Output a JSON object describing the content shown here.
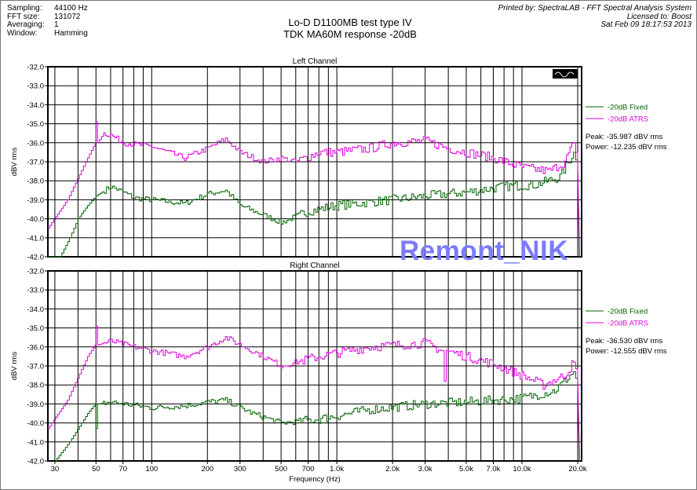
{
  "meta": {
    "items": [
      {
        "k": "Sampling:",
        "v": "44100 Hz"
      },
      {
        "k": "FFT size:",
        "v": "131072"
      },
      {
        "k": "Averaging:",
        "v": "1"
      },
      {
        "k": "Window:",
        "v": "Hamming"
      }
    ]
  },
  "title": {
    "line1": "Lo-D D1100MB test type IV",
    "line2": "TDK MA60M response -20dB"
  },
  "printed": {
    "line1": "Printed by: SpectraLAB - FFT Spectral Analysis System",
    "line2": "Licensed to: Boost",
    "line3": "Sat Feb 09 18:17:53 2013"
  },
  "watermark": "Remont_NIK",
  "colors": {
    "fixed": "#006400",
    "atrs": "#e000e0"
  },
  "chart_data": [
    {
      "type": "line",
      "title": "Left Channel",
      "xlabel": "",
      "ylabel": "dBV rms",
      "xscale": "log",
      "xlim": [
        27.5,
        21000
      ],
      "ylim": [
        -42,
        -32
      ],
      "yticks": [
        "-32.0",
        "-33.0",
        "-34.0",
        "-35.0",
        "-36.0",
        "-37.0",
        "-38.0",
        "-39.0",
        "-40.0",
        "-41.0",
        "-42.0"
      ],
      "legend": [
        "-20dB Fixed",
        "-20dB ATRS"
      ],
      "legend_position": "right",
      "peak": "Peak: -35.987 dBV rms",
      "power": "Power: -12.235 dBV rms",
      "series": [
        {
          "name": "-20dB Fixed",
          "points": [
            [
              27.5,
              -42
            ],
            [
              32,
              -42
            ],
            [
              36,
              -41
            ],
            [
              40,
              -40
            ],
            [
              45,
              -39.3
            ],
            [
              50,
              -38.8
            ],
            [
              60,
              -38.3
            ],
            [
              70,
              -38.6
            ],
            [
              80,
              -38.9
            ],
            [
              100,
              -39
            ],
            [
              150,
              -39.2
            ],
            [
              200,
              -38.7
            ],
            [
              250,
              -38.5
            ],
            [
              300,
              -39.3
            ],
            [
              400,
              -39.8
            ],
            [
              500,
              -40.2
            ],
            [
              700,
              -39.6
            ],
            [
              1000,
              -39.3
            ],
            [
              2000,
              -39
            ],
            [
              3000,
              -38.8
            ],
            [
              5000,
              -38.6
            ],
            [
              8000,
              -38.3
            ],
            [
              12000,
              -38.2
            ],
            [
              16000,
              -37.8
            ],
            [
              19000,
              -36.5
            ],
            [
              20000,
              -37.3
            ],
            [
              20400,
              -42
            ]
          ]
        },
        {
          "name": "-20dB ATRS",
          "points": [
            [
              27.5,
              -40.5
            ],
            [
              35,
              -39
            ],
            [
              45,
              -36.8
            ],
            [
              49.5,
              -36
            ],
            [
              50,
              -34.9
            ],
            [
              51,
              -36
            ],
            [
              55,
              -35.5
            ],
            [
              60,
              -35.6
            ],
            [
              70,
              -36
            ],
            [
              100,
              -36.2
            ],
            [
              150,
              -36.8
            ],
            [
              200,
              -36.3
            ],
            [
              250,
              -35.8
            ],
            [
              300,
              -36.5
            ],
            [
              400,
              -37
            ],
            [
              500,
              -36.8
            ],
            [
              600,
              -37
            ],
            [
              800,
              -36.5
            ],
            [
              1000,
              -36.5
            ],
            [
              1500,
              -36.3
            ],
            [
              2000,
              -36
            ],
            [
              3000,
              -35.9
            ],
            [
              4000,
              -36.3
            ],
            [
              5000,
              -36.5
            ],
            [
              7000,
              -36.8
            ],
            [
              10000,
              -37.3
            ],
            [
              14000,
              -37.5
            ],
            [
              17000,
              -37
            ],
            [
              19000,
              -36
            ],
            [
              20000,
              -37
            ],
            [
              20500,
              -42
            ]
          ]
        }
      ]
    },
    {
      "type": "line",
      "title": "Right Channel",
      "xlabel": "Frequency (Hz)",
      "ylabel": "dBV rms",
      "xscale": "log",
      "xlim": [
        27.5,
        21000
      ],
      "ylim": [
        -42,
        -32
      ],
      "yticks": [
        "-32.0",
        "-33.0",
        "-34.0",
        "-35.0",
        "-36.0",
        "-37.0",
        "-38.0",
        "-39.0",
        "-40.0",
        "-41.0",
        "-42.0"
      ],
      "xticks": [
        "30",
        "50",
        "70",
        "100",
        "200",
        "300",
        "500",
        "700",
        "1.0k",
        "2.0k",
        "3.0k",
        "5.0k",
        "7.0k",
        "10.0k",
        "20.0k"
      ],
      "legend": [
        "-20dB Fixed",
        "-20dB ATRS"
      ],
      "legend_position": "right",
      "peak": "Peak: -36.530 dBV rms",
      "power": "Power: -12.555 dBV rms",
      "series": [
        {
          "name": "-20dB Fixed",
          "points": [
            [
              30,
              -42
            ],
            [
              36,
              -41
            ],
            [
              45,
              -39.5
            ],
            [
              49.5,
              -39
            ],
            [
              50,
              -40.3
            ],
            [
              51,
              -39
            ],
            [
              60,
              -38.9
            ],
            [
              100,
              -39.2
            ],
            [
              150,
              -39.1
            ],
            [
              200,
              -38.9
            ],
            [
              250,
              -38.8
            ],
            [
              350,
              -39.5
            ],
            [
              500,
              -40
            ],
            [
              800,
              -39.8
            ],
            [
              1500,
              -39.3
            ],
            [
              3000,
              -39
            ],
            [
              5000,
              -38.9
            ],
            [
              10000,
              -38.7
            ],
            [
              15000,
              -38.3
            ],
            [
              19000,
              -37.3
            ],
            [
              20000,
              -38
            ],
            [
              20400,
              -42
            ]
          ]
        },
        {
          "name": "-20dB ATRS",
          "points": [
            [
              27.5,
              -40.3
            ],
            [
              35,
              -38.8
            ],
            [
              45,
              -36.5
            ],
            [
              49.5,
              -35.9
            ],
            [
              50,
              -34.9
            ],
            [
              51,
              -35.9
            ],
            [
              55,
              -35.8
            ],
            [
              60,
              -35.7
            ],
            [
              80,
              -36
            ],
            [
              100,
              -36.2
            ],
            [
              150,
              -36.5
            ],
            [
              200,
              -36
            ],
            [
              250,
              -35.5
            ],
            [
              400,
              -36.5
            ],
            [
              500,
              -37
            ],
            [
              800,
              -36.5
            ],
            [
              1500,
              -36
            ],
            [
              3000,
              -35.8
            ],
            [
              3700,
              -36.2
            ],
            [
              3800,
              -37.8
            ],
            [
              3900,
              -36.2
            ],
            [
              5000,
              -36.5
            ],
            [
              7000,
              -36.9
            ],
            [
              10000,
              -37.5
            ],
            [
              13000,
              -38
            ],
            [
              17000,
              -37.5
            ],
            [
              19000,
              -36.8
            ],
            [
              20000,
              -37.5
            ],
            [
              20500,
              -42
            ]
          ]
        }
      ]
    }
  ]
}
